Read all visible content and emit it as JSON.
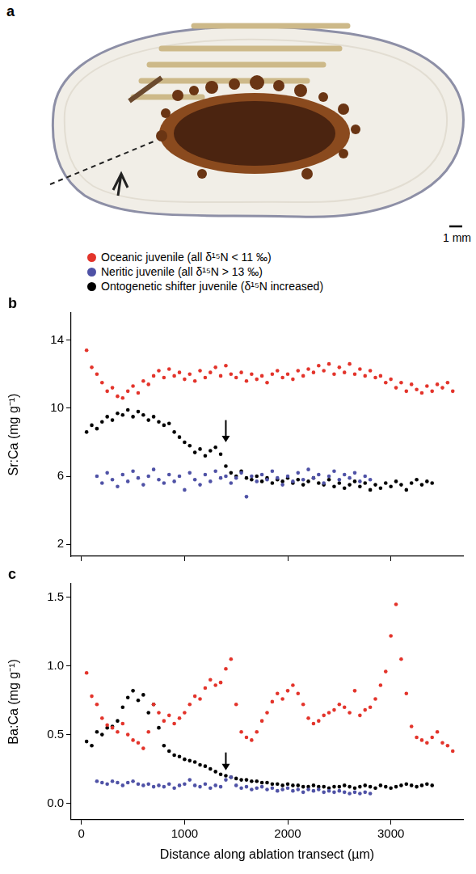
{
  "photo": {
    "panel_label": "a",
    "scale_bar": "1 mm"
  },
  "chart_data": [
    {
      "type": "scatter",
      "panel_label": "b",
      "y_label": "Sr:Ca (mg g⁻¹)",
      "xlim": [
        -100,
        3700
      ],
      "xticks": [
        0,
        1000,
        2000,
        3000
      ],
      "ylim": [
        1.3,
        15.6
      ],
      "yticks": [
        2,
        6,
        10,
        14
      ],
      "grid": false,
      "tick_labels": "y",
      "legend": "top",
      "marker": "circle",
      "arrow": {
        "x": 1400,
        "y_from": 9.3,
        "y_to": 8.0
      },
      "x": [
        0,
        50,
        100,
        150,
        200,
        250,
        300,
        350,
        400,
        450,
        500,
        550,
        600,
        650,
        700,
        750,
        800,
        850,
        900,
        950,
        1000,
        1050,
        1100,
        1150,
        1200,
        1250,
        1300,
        1350,
        1400,
        1450,
        1500,
        1550,
        1600,
        1650,
        1700,
        1750,
        1800,
        1850,
        1900,
        1950,
        2000,
        2050,
        2100,
        2150,
        2200,
        2250,
        2300,
        2350,
        2400,
        2450,
        2500,
        2550,
        2600,
        2650,
        2700,
        2750,
        2800,
        2850,
        2900,
        2950,
        3000,
        3050,
        3100,
        3150,
        3200,
        3250,
        3300,
        3350,
        3400,
        3450,
        3500,
        3550,
        3600,
        3650
      ],
      "series": [
        {
          "name": "Oceanic juvenile (all δ¹⁵N < 11 ‰)",
          "color": "#e3342b",
          "values": [
            null,
            13.4,
            12.4,
            12.0,
            11.5,
            11.0,
            11.2,
            10.7,
            10.6,
            11.0,
            11.3,
            10.9,
            11.6,
            11.4,
            11.9,
            12.2,
            11.8,
            12.3,
            11.9,
            12.1,
            11.7,
            12.0,
            11.6,
            12.2,
            11.8,
            12.1,
            12.4,
            11.9,
            12.5,
            12.0,
            11.8,
            12.1,
            11.6,
            12.0,
            11.7,
            11.9,
            11.5,
            12.0,
            12.2,
            11.8,
            12.0,
            11.7,
            12.2,
            11.9,
            12.3,
            12.1,
            12.5,
            12.2,
            12.6,
            12.0,
            12.4,
            12.1,
            12.6,
            12.0,
            12.3,
            11.9,
            12.2,
            11.8,
            11.9,
            11.5,
            11.7,
            11.2,
            11.5,
            11.0,
            11.4,
            11.1,
            10.9,
            11.3,
            11.0,
            11.4,
            11.2,
            11.5,
            11.0,
            null
          ]
        },
        {
          "name": "Neritic juvenile (all δ¹⁵N > 13 ‰)",
          "color": "#4f52a6",
          "values": [
            null,
            null,
            null,
            6.0,
            5.6,
            6.2,
            5.8,
            5.4,
            6.1,
            5.7,
            6.3,
            5.9,
            5.5,
            6.0,
            6.4,
            5.8,
            5.6,
            6.1,
            5.7,
            6.0,
            5.2,
            6.2,
            5.8,
            5.5,
            6.1,
            5.7,
            6.3,
            5.9,
            6.0,
            5.6,
            5.9,
            6.2,
            4.8,
            6.0,
            5.7,
            6.1,
            5.8,
            6.3,
            5.9,
            5.5,
            6.0,
            5.7,
            6.2,
            5.8,
            6.4,
            5.9,
            6.1,
            5.6,
            6.0,
            6.3,
            5.8,
            6.1,
            5.9,
            6.2,
            5.7,
            6.0,
            5.8,
            null,
            null,
            null,
            null,
            null,
            null,
            null,
            null,
            null,
            null,
            null,
            null,
            null,
            null,
            null,
            null,
            null
          ]
        },
        {
          "name": "Ontogenetic shifter juvenile (δ¹⁵N increased)",
          "color": "#000000",
          "values": [
            null,
            8.6,
            9.0,
            8.8,
            9.2,
            9.5,
            9.3,
            9.7,
            9.6,
            9.9,
            9.5,
            9.8,
            9.6,
            9.3,
            9.5,
            9.2,
            9.0,
            9.1,
            8.6,
            8.3,
            8.0,
            7.8,
            7.4,
            7.6,
            7.2,
            7.5,
            7.7,
            7.3,
            6.6,
            6.2,
            6.0,
            6.3,
            5.9,
            5.8,
            6.0,
            5.7,
            5.9,
            5.6,
            5.8,
            5.7,
            5.9,
            5.6,
            5.8,
            5.5,
            5.7,
            5.9,
            5.6,
            5.5,
            5.8,
            5.4,
            5.6,
            5.3,
            5.5,
            5.7,
            5.4,
            5.6,
            5.2,
            5.5,
            5.3,
            5.6,
            5.4,
            5.7,
            5.5,
            5.2,
            5.6,
            5.8,
            5.5,
            5.7,
            5.6,
            null,
            null,
            null,
            null,
            null
          ]
        }
      ]
    },
    {
      "type": "scatter",
      "panel_label": "c",
      "x_label": "Distance along ablation transect (µm)",
      "y_label": "Ba:Ca (mg g⁻¹)",
      "xlim": [
        -100,
        3700
      ],
      "xticks": [
        0,
        1000,
        2000,
        3000
      ],
      "ylim": [
        -0.12,
        1.6
      ],
      "yticks": [
        {
          "value": 0,
          "label": "0.0"
        },
        {
          "value": 0.5,
          "label": "0.5"
        },
        {
          "value": 1,
          "label": "1.0"
        },
        {
          "value": 1.5,
          "label": "1.5"
        }
      ],
      "grid": false,
      "tick_labels": true,
      "marker": "circle",
      "arrow": {
        "x": 1400,
        "y_from": 0.37,
        "y_to": 0.24
      },
      "x": [
        0,
        50,
        100,
        150,
        200,
        250,
        300,
        350,
        400,
        450,
        500,
        550,
        600,
        650,
        700,
        750,
        800,
        850,
        900,
        950,
        1000,
        1050,
        1100,
        1150,
        1200,
        1250,
        1300,
        1350,
        1400,
        1450,
        1500,
        1550,
        1600,
        1650,
        1700,
        1750,
        1800,
        1850,
        1900,
        1950,
        2000,
        2050,
        2100,
        2150,
        2200,
        2250,
        2300,
        2350,
        2400,
        2450,
        2500,
        2550,
        2600,
        2650,
        2700,
        2750,
        2800,
        2850,
        2900,
        2950,
        3000,
        3050,
        3100,
        3150,
        3200,
        3250,
        3300,
        3350,
        3400,
        3450,
        3500,
        3550,
        3600,
        3650
      ],
      "series": [
        {
          "name": "Oceanic juvenile (all δ¹⁵N < 11 ‰)",
          "color": "#e3342b",
          "values": [
            null,
            0.95,
            0.78,
            0.72,
            0.62,
            0.57,
            0.55,
            0.52,
            0.58,
            0.5,
            0.46,
            0.44,
            0.4,
            0.52,
            0.72,
            0.66,
            0.6,
            0.64,
            0.58,
            0.62,
            0.66,
            0.72,
            0.78,
            0.76,
            0.84,
            0.9,
            0.86,
            0.88,
            0.98,
            1.05,
            0.72,
            0.52,
            0.48,
            0.46,
            0.52,
            0.6,
            0.66,
            0.74,
            0.8,
            0.76,
            0.82,
            0.86,
            0.8,
            0.72,
            0.62,
            0.58,
            0.6,
            0.64,
            0.66,
            0.68,
            0.72,
            0.7,
            0.66,
            0.82,
            0.64,
            0.68,
            0.7,
            0.76,
            0.86,
            0.96,
            1.22,
            1.45,
            1.05,
            0.8,
            0.56,
            0.48,
            0.46,
            0.44,
            0.48,
            0.52,
            0.44,
            0.42,
            0.38,
            null
          ]
        },
        {
          "name": "Neritic juvenile (all δ¹⁵N > 13 ‰)",
          "color": "#4f52a6",
          "values": [
            null,
            null,
            null,
            0.16,
            0.15,
            0.14,
            0.16,
            0.15,
            0.13,
            0.15,
            0.16,
            0.14,
            0.13,
            0.14,
            0.12,
            0.13,
            0.12,
            0.14,
            0.11,
            0.13,
            0.14,
            0.17,
            0.13,
            0.12,
            0.14,
            0.11,
            0.13,
            0.12,
            0.17,
            0.19,
            0.13,
            0.11,
            0.12,
            0.1,
            0.11,
            0.12,
            0.1,
            0.11,
            0.09,
            0.1,
            0.11,
            0.09,
            0.1,
            0.08,
            0.1,
            0.09,
            0.1,
            0.08,
            0.09,
            0.08,
            0.09,
            0.08,
            0.07,
            0.08,
            0.07,
            0.08,
            0.07,
            null,
            null,
            null,
            null,
            null,
            null,
            null,
            null,
            null,
            null,
            null,
            null,
            null,
            null,
            null,
            null,
            null
          ]
        },
        {
          "name": "Ontogenetic shifter juvenile (δ¹⁵N increased)",
          "color": "#000000",
          "values": [
            null,
            0.45,
            0.42,
            0.52,
            0.5,
            0.55,
            0.56,
            0.6,
            0.7,
            0.77,
            0.82,
            0.75,
            0.79,
            0.66,
            0.72,
            0.55,
            0.42,
            0.38,
            0.35,
            0.34,
            0.32,
            0.31,
            0.3,
            0.28,
            0.27,
            0.25,
            0.23,
            0.21,
            0.2,
            0.19,
            0.18,
            0.17,
            0.17,
            0.16,
            0.16,
            0.15,
            0.15,
            0.14,
            0.14,
            0.13,
            0.14,
            0.13,
            0.13,
            0.12,
            0.12,
            0.13,
            0.12,
            0.12,
            0.11,
            0.12,
            0.12,
            0.13,
            0.12,
            0.11,
            0.12,
            0.13,
            0.12,
            0.11,
            0.13,
            0.12,
            0.11,
            0.12,
            0.13,
            0.14,
            0.13,
            0.12,
            0.13,
            0.14,
            0.13,
            null,
            null,
            null,
            null,
            null
          ]
        }
      ]
    }
  ]
}
